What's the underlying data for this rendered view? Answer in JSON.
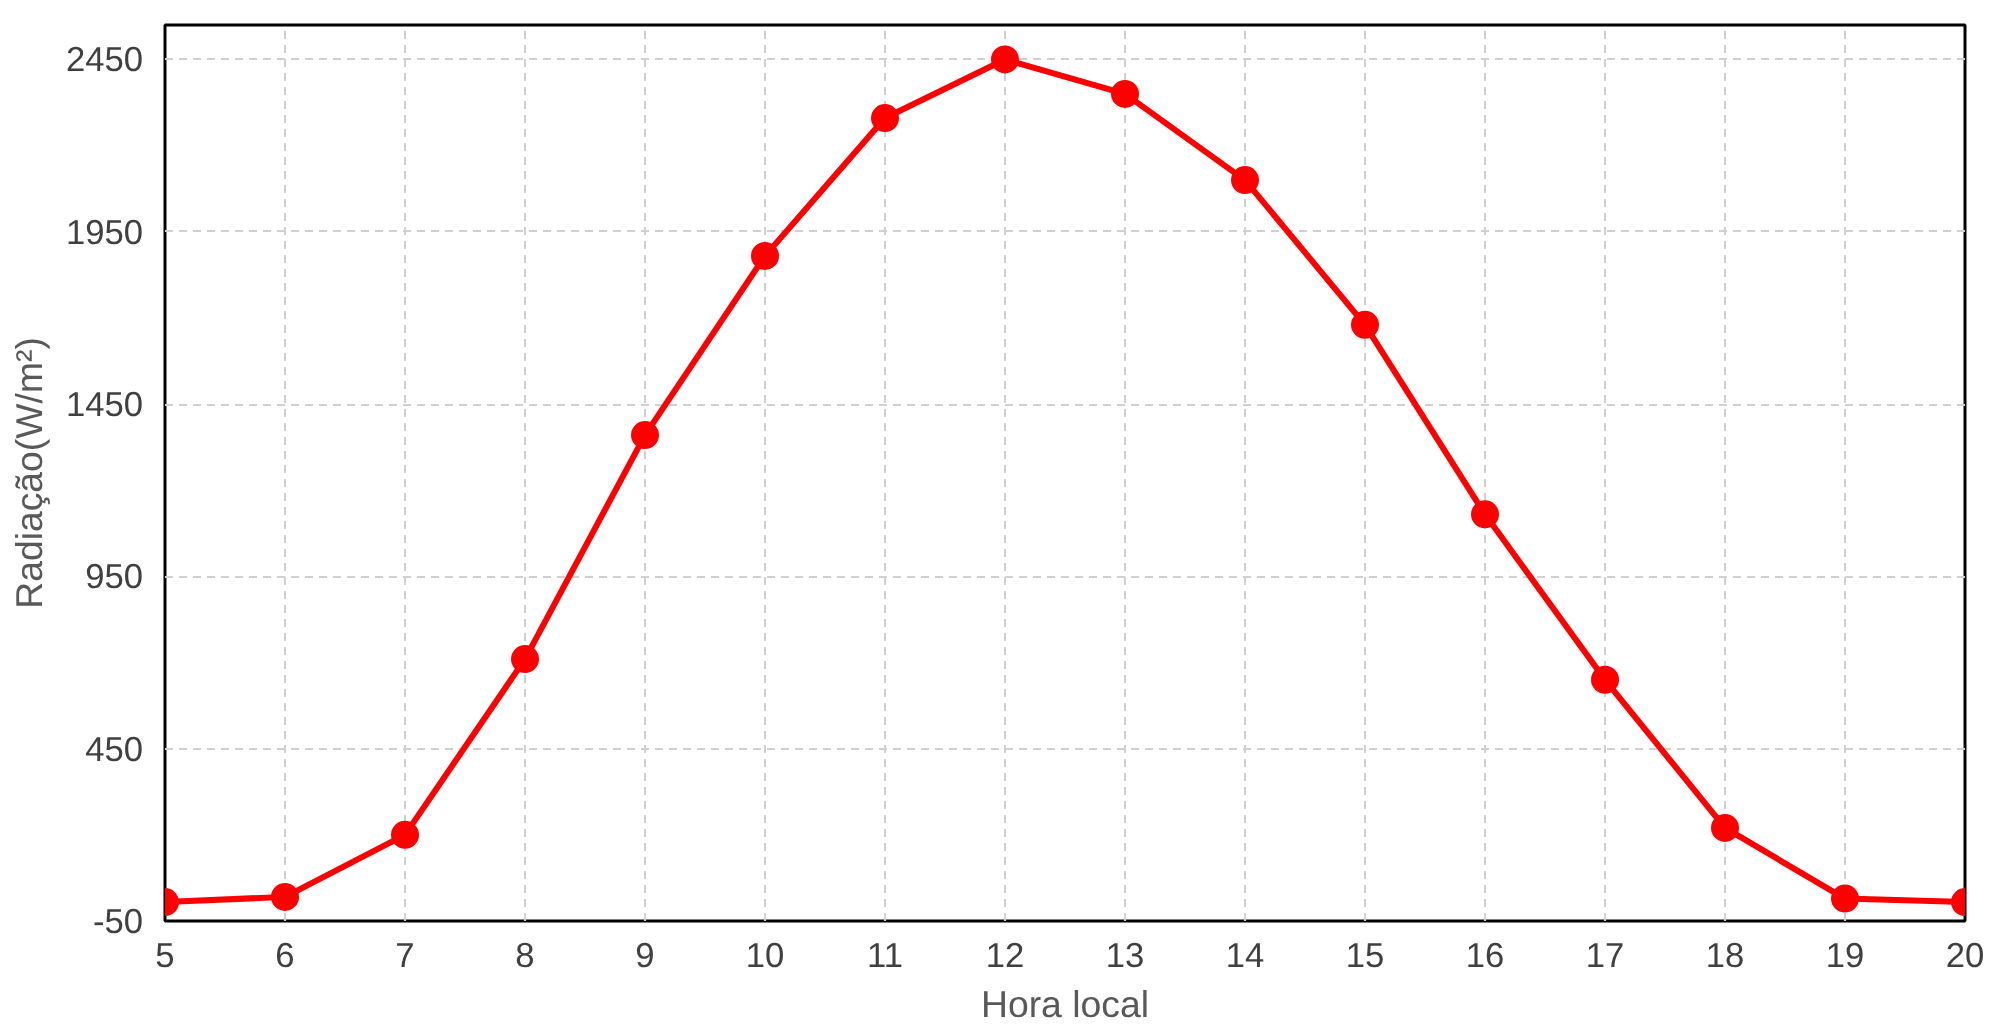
{
  "chart_data": {
    "type": "line",
    "xlabel": "Hora local",
    "ylabel": "Radiação(W/m²)",
    "x": [
      5,
      6,
      7,
      8,
      9,
      10,
      11,
      12,
      13,
      14,
      15,
      16,
      17,
      18,
      19,
      20
    ],
    "series": [
      {
        "color": "#ff0000",
        "values": [
          5,
          20,
          200,
          710,
          1360,
          1880,
          2280,
          2450,
          2350,
          2100,
          1680,
          1130,
          650,
          220,
          15,
          5
        ]
      }
    ],
    "xlim": [
      5,
      20
    ],
    "xticks": [
      5,
      6,
      7,
      8,
      9,
      10,
      11,
      12,
      13,
      14,
      15,
      16,
      17,
      18,
      19,
      20
    ],
    "ylim": [
      -50,
      2550
    ],
    "yticks": [
      -50,
      450,
      950,
      1450,
      1950,
      2450
    ],
    "grid": true,
    "marker": "circle",
    "line_style": "solid"
  }
}
